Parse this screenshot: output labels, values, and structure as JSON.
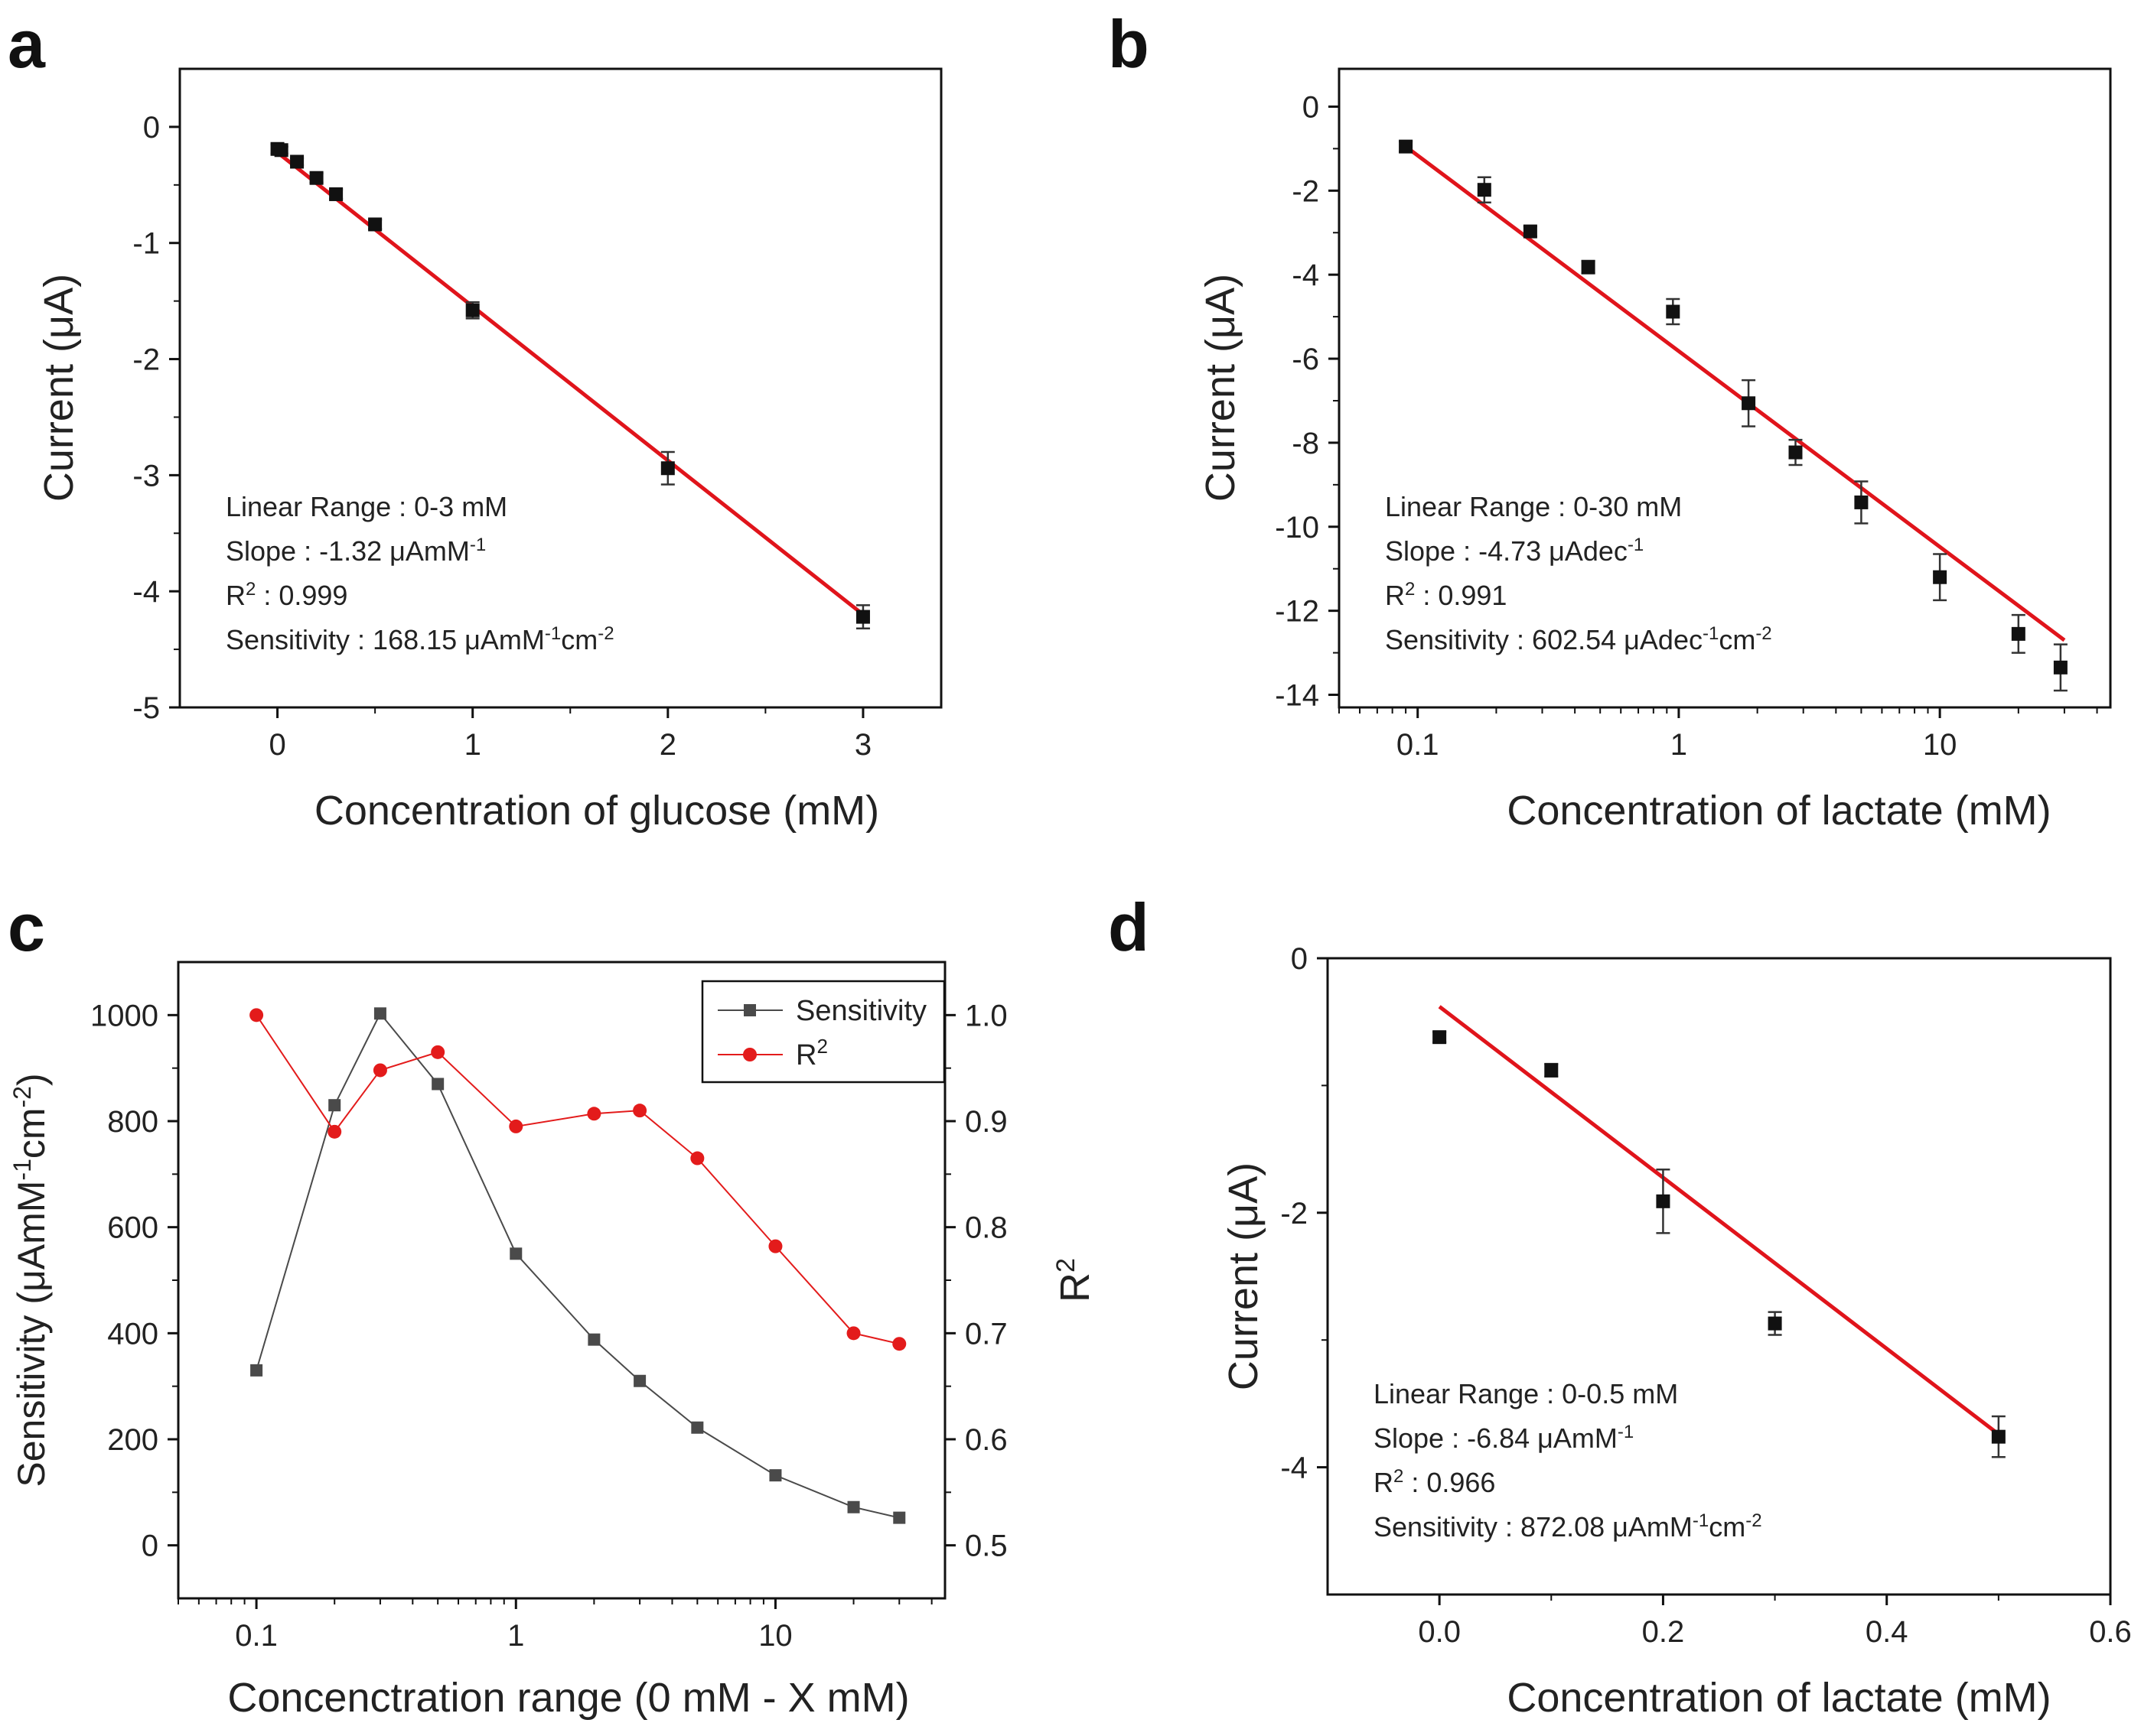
{
  "figure": {
    "panels": [
      {
        "letter": "a",
        "type": "scatter",
        "xlabel": "Concentration of glucose (mM)",
        "ylabel": "Current (μA)",
        "xscale": "linear",
        "xlim": [
          -0.5,
          3.4
        ],
        "ylim": [
          -5,
          0.5
        ],
        "xticks": [
          0,
          1,
          2,
          3
        ],
        "xtick_labels": [
          "0",
          "1",
          "2",
          "3"
        ],
        "yticks": [
          0,
          -1,
          -2,
          -3,
          -4,
          -5
        ],
        "ytick_labels": [
          "0",
          "-1",
          "-2",
          "-3",
          "-4",
          "-5"
        ],
        "points": [
          {
            "x": 0.0,
            "y": -0.19,
            "err": 0.04
          },
          {
            "x": 0.02,
            "y": -0.2,
            "err": 0.03
          },
          {
            "x": 0.1,
            "y": -0.3,
            "err": 0.03
          },
          {
            "x": 0.2,
            "y": -0.44,
            "err": 0.04
          },
          {
            "x": 0.3,
            "y": -0.58,
            "err": 0.04
          },
          {
            "x": 0.5,
            "y": -0.84,
            "err": 0.04
          },
          {
            "x": 1.0,
            "y": -1.58,
            "err": 0.07
          },
          {
            "x": 2.0,
            "y": -2.94,
            "err": 0.14
          },
          {
            "x": 3.0,
            "y": -4.22,
            "err": 0.1
          }
        ],
        "fit": {
          "x": [
            0,
            3
          ],
          "y": [
            -0.22,
            -4.2
          ]
        },
        "annotation": [
          {
            "text": "Linear Range : 0-3 mM"
          },
          {
            "text": "Slope : -1.32 μAmM",
            "sup": "-1"
          },
          {
            "text": "R",
            "sup": "2",
            "after": " : 0.999"
          },
          {
            "text": "Sensitivity : 168.15 μAmM",
            "sup": "-1",
            "after": "cm",
            "sup2": "-2"
          }
        ]
      },
      {
        "letter": "b",
        "type": "scatter",
        "xlabel": "Concentration of lactate (mM)",
        "ylabel": "Current (μA)",
        "xscale": "log",
        "xlim": [
          0.05,
          45
        ],
        "ylim": [
          -14.3,
          0.9
        ],
        "xticks": [
          0.1,
          1,
          10
        ],
        "xtick_labels": [
          "0.1",
          "1",
          "10"
        ],
        "yticks": [
          0,
          -2,
          -4,
          -6,
          -8,
          -10,
          -12,
          -14
        ],
        "ytick_labels": [
          "0",
          "-2",
          "-4",
          "-6",
          "-8",
          "-10",
          "-12",
          "-14"
        ],
        "points": [
          {
            "x": 0.09,
            "y": -0.95,
            "err": 0.12
          },
          {
            "x": 0.18,
            "y": -1.98,
            "err": 0.3
          },
          {
            "x": 0.27,
            "y": -2.97,
            "err": 0.12
          },
          {
            "x": 0.45,
            "y": -3.82,
            "err": 0.15
          },
          {
            "x": 0.95,
            "y": -4.88,
            "err": 0.3
          },
          {
            "x": 1.85,
            "y": -7.06,
            "err": 0.55
          },
          {
            "x": 2.8,
            "y": -8.23,
            "err": 0.3
          },
          {
            "x": 5.0,
            "y": -9.42,
            "err": 0.5
          },
          {
            "x": 10.0,
            "y": -11.2,
            "err": 0.55
          },
          {
            "x": 20.0,
            "y": -12.55,
            "err": 0.45
          },
          {
            "x": 29.0,
            "y": -13.35,
            "err": 0.55
          }
        ],
        "fit": {
          "x": [
            0.09,
            30
          ],
          "y": [
            -0.95,
            -12.7
          ]
        },
        "annotation": [
          {
            "text": "Linear Range : 0-30 mM"
          },
          {
            "text": "Slope : -4.73 μAdec",
            "sup": "-1"
          },
          {
            "text": "R",
            "sup": "2",
            "after": " : 0.991"
          },
          {
            "text": "Sensitivity : 602.54 μAdec",
            "sup": "-1",
            "after": "cm",
            "sup2": "-2"
          }
        ]
      },
      {
        "letter": "c",
        "type": "line",
        "xlabel": "Concenctration range (0 mM - X mM)",
        "ylabel": "Sensitivity (μAmM",
        "ylabel_sup": "-1",
        "ylabel_mid": "cm",
        "ylabel_sup2": "-2",
        "ylabel_end": ")",
        "y2label": "R",
        "y2label_sup": "2",
        "xscale": "log",
        "xlim": [
          0.05,
          45
        ],
        "ylim": [
          -100,
          1100
        ],
        "y2lim": [
          0.45,
          1.05
        ],
        "xticks": [
          0.1,
          1,
          10
        ],
        "xtick_labels": [
          "0.1",
          "1",
          "10"
        ],
        "yticks": [
          0,
          200,
          400,
          600,
          800,
          1000
        ],
        "ytick_labels": [
          "0",
          "200",
          "400",
          "600",
          "800",
          "1000"
        ],
        "y2ticks": [
          0.5,
          0.6,
          0.7,
          0.8,
          0.9,
          1.0
        ],
        "y2tick_labels": [
          "0.5",
          "0.6",
          "0.7",
          "0.8",
          "0.9",
          "1.0"
        ],
        "x": [
          0.1,
          0.2,
          0.3,
          0.5,
          1,
          2,
          3,
          5,
          10,
          20,
          30
        ],
        "series": [
          {
            "name": "Sensitivity",
            "axis": "left",
            "color": "#4a4a4a",
            "marker": "square",
            "values": [
              330,
              830,
              1003,
              870,
              550,
              388,
              310,
              222,
              132,
              72,
              52
            ]
          },
          {
            "name": "R",
            "sup": "2",
            "axis": "right",
            "color": "#e31b1b",
            "marker": "circle",
            "values": [
              1.0,
              0.89,
              0.948,
              0.965,
              0.895,
              0.907,
              0.91,
              0.865,
              0.782,
              0.7,
              0.69
            ]
          }
        ],
        "legend": "top-right"
      },
      {
        "letter": "d",
        "type": "scatter",
        "xlabel": "Concentration of lactate (mM)",
        "ylabel": "Current (μA)",
        "xscale": "linear",
        "xlim": [
          -0.1,
          0.6
        ],
        "ylim": [
          -5.0,
          0.0
        ],
        "xticks": [
          0.0,
          0.2,
          0.4,
          0.6
        ],
        "xtick_labels": [
          "0.0",
          "0.2",
          "0.4",
          "0.6"
        ],
        "yticks": [
          0,
          -2,
          -4
        ],
        "ytick_labels": [
          "0",
          "-2",
          "-4"
        ],
        "points": [
          {
            "x": 0.0,
            "y": -0.62,
            "err": 0.04
          },
          {
            "x": 0.1,
            "y": -0.88,
            "err": 0.05
          },
          {
            "x": 0.2,
            "y": -1.91,
            "err": 0.25
          },
          {
            "x": 0.3,
            "y": -2.87,
            "err": 0.09
          },
          {
            "x": 0.5,
            "y": -3.76,
            "err": 0.16
          }
        ],
        "fit": {
          "x": [
            0,
            0.5
          ],
          "y": [
            -0.38,
            -3.74
          ]
        },
        "annotation": [
          {
            "text": "Linear Range : 0-0.5 mM"
          },
          {
            "text": "Slope : -6.84 μAmM",
            "sup": "-1"
          },
          {
            "text": "R",
            "sup": "2",
            "after": " : 0.966"
          },
          {
            "text": "Sensitivity : 872.08 μAmM",
            "sup": "-1",
            "after": "cm",
            "sup2": "-2"
          }
        ]
      }
    ]
  },
  "chart_data": [
    {
      "type": "scatter",
      "title": "a",
      "xlabel": "Concentration of glucose (mM)",
      "ylabel": "Current (μA)",
      "x": [
        0,
        0.02,
        0.1,
        0.2,
        0.3,
        0.5,
        1,
        2,
        3
      ],
      "values": [
        -0.19,
        -0.2,
        -0.3,
        -0.44,
        -0.58,
        -0.84,
        -1.58,
        -2.94,
        -4.22
      ],
      "xlim": [
        -0.5,
        3.4
      ],
      "ylim": [
        -5,
        0.5
      ]
    },
    {
      "type": "scatter",
      "title": "b",
      "xlabel": "Concentration of lactate (mM)",
      "ylabel": "Current (μA)",
      "x": [
        0.09,
        0.18,
        0.27,
        0.45,
        0.95,
        1.85,
        2.8,
        5,
        10,
        20,
        29
      ],
      "values": [
        -0.95,
        -1.98,
        -2.97,
        -3.82,
        -4.88,
        -7.06,
        -8.23,
        -9.42,
        -11.2,
        -12.55,
        -13.35
      ],
      "xscale": "log",
      "ylim": [
        -14.3,
        0.9
      ]
    },
    {
      "type": "line",
      "title": "c",
      "xlabel": "Concenctration range (0 mM - X mM)",
      "ylabel": "Sensitivity",
      "y2label": "R2",
      "x": [
        0.1,
        0.2,
        0.3,
        0.5,
        1,
        2,
        3,
        5,
        10,
        20,
        30
      ],
      "series": [
        {
          "name": "Sensitivity",
          "values": [
            330,
            830,
            1003,
            870,
            550,
            388,
            310,
            222,
            132,
            72,
            52
          ]
        },
        {
          "name": "R2",
          "values": [
            1.0,
            0.89,
            0.948,
            0.965,
            0.895,
            0.907,
            0.91,
            0.865,
            0.782,
            0.7,
            0.69
          ]
        }
      ],
      "xscale": "log",
      "ylim": [
        -100,
        1100
      ],
      "y2lim": [
        0.45,
        1.05
      ]
    },
    {
      "type": "scatter",
      "title": "d",
      "xlabel": "Concentration of lactate (mM)",
      "ylabel": "Current (μA)",
      "x": [
        0,
        0.1,
        0.2,
        0.3,
        0.5
      ],
      "values": [
        -0.62,
        -0.88,
        -1.91,
        -2.87,
        -3.76
      ],
      "xlim": [
        -0.1,
        0.6
      ],
      "ylim": [
        -5,
        0
      ]
    }
  ]
}
